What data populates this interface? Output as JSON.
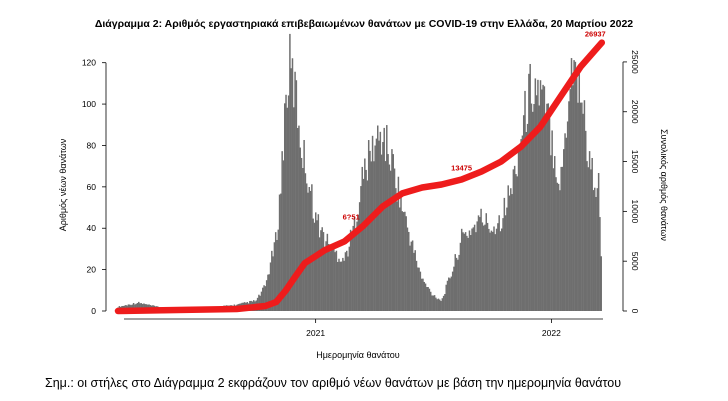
{
  "chart_data": {
    "type": "bar",
    "title": "Διάγραμμα 2: Αριθμός εργαστηριακά επιβεβαιωμένων θανάτων με COVID-19 στην Ελλάδα, 20 Μαρτίου 2022",
    "xlabel": "Ημερομηνία θανάτου",
    "ylabel_left": "Αριθμός νέων θανάτων",
    "ylabel_right": "Συνολικός αριθμός θανάτων",
    "x_ticks": [
      "2021",
      "2022"
    ],
    "y_left_ticks": [
      0,
      20,
      40,
      60,
      80,
      100,
      120
    ],
    "y_left_lim": [
      0,
      130
    ],
    "y_right_ticks": [
      0,
      5000,
      10000,
      15000,
      20000,
      25000
    ],
    "y_right_lim": [
      0,
      27000
    ],
    "series": [
      {
        "kind": "bars",
        "color": "#6e6e6e",
        "x": [
          "2020-03",
          "2020-04",
          "2020-05",
          "2020-06",
          "2020-07",
          "2020-08",
          "2020-09",
          "2020-10",
          "2020-10-15",
          "2020-11-01",
          "2020-11-08",
          "2020-11-15",
          "2020-11-22",
          "2020-12-01",
          "2020-12-10",
          "2020-12-20",
          "2021-01-01",
          "2021-01-15",
          "2021-02-01",
          "2021-02-15",
          "2021-03-01",
          "2021-03-15",
          "2021-04-01",
          "2021-04-15",
          "2021-05-01",
          "2021-05-15",
          "2021-06-01",
          "2021-06-15",
          "2021-07-01",
          "2021-07-15",
          "2021-08-01",
          "2021-08-15",
          "2021-09-01",
          "2021-09-15",
          "2021-10-01",
          "2021-10-15",
          "2021-11-01",
          "2021-11-15",
          "2021-12-01",
          "2021-12-15",
          "2022-01-01",
          "2022-01-15",
          "2022-02-01",
          "2022-02-15",
          "2022-03-01",
          "2022-03-15",
          "2022-03-20"
        ],
        "values": [
          2,
          4,
          2,
          1,
          1,
          2,
          3,
          5,
          12,
          35,
          60,
          100,
          118,
          105,
          80,
          65,
          45,
          35,
          28,
          25,
          40,
          65,
          80,
          85,
          70,
          50,
          30,
          15,
          8,
          5,
          20,
          35,
          40,
          45,
          40,
          45,
          60,
          85,
          110,
          105,
          85,
          60,
          120,
          110,
          70,
          60,
          20
        ]
      },
      {
        "kind": "line",
        "name": "",
        "color": "#ee1c1c",
        "x": [
          "2020-03",
          "2020-06",
          "2020-09",
          "2020-10-15",
          "2020-11-01",
          "2020-11-15",
          "2020-12-01",
          "2020-12-15",
          "2021-01-01",
          "2021-01-15",
          "2021-02-15",
          "2021-03-15",
          "2021-04-15",
          "2021-05-15",
          "2021-06-15",
          "2021-07-15",
          "2021-08-15",
          "2021-09-15",
          "2021-10-15",
          "2021-11-15",
          "2021-12-15",
          "2022-01-15",
          "2022-02-15",
          "2022-03-20"
        ],
        "values": [
          0,
          100,
          200,
          500,
          900,
          2000,
          3500,
          4800,
          5500,
          6100,
          7000,
          8500,
          10500,
          11800,
          12400,
          12700,
          13200,
          14000,
          15000,
          16500,
          18500,
          21500,
          24500,
          26937
        ]
      }
    ],
    "annotations": [
      "6?51",
      "13475",
      "26937"
    ]
  },
  "footnote": "Σημ.: οι στήλες στο Διάγραμμα 2 εκφράζουν τον αριθμό νέων θανάτων με βάση την ημερομηνία θανάτου"
}
